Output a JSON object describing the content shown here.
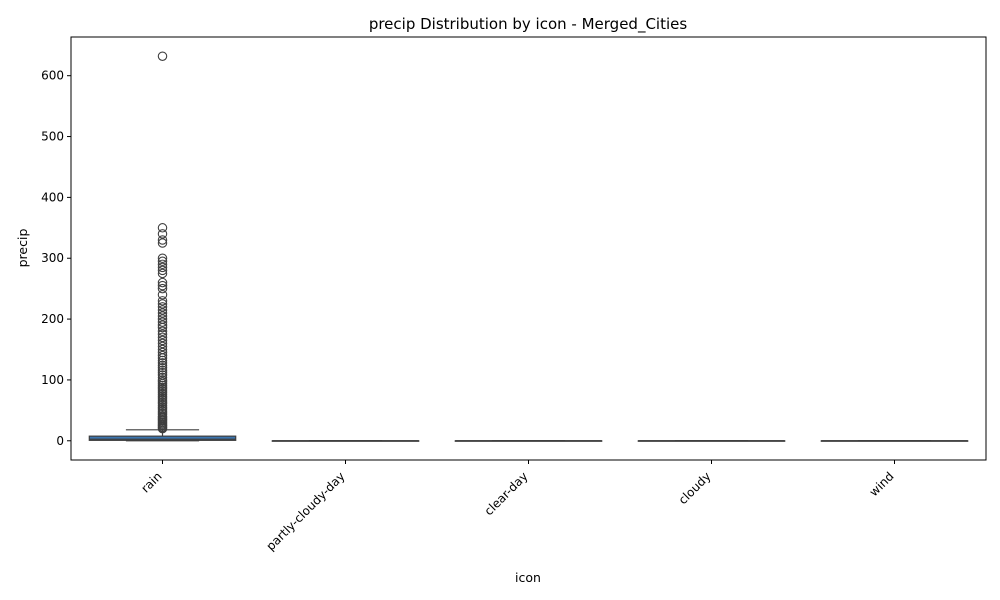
{
  "chart_data": {
    "type": "box",
    "title": "precip Distribution by icon - Merged_Cities",
    "xlabel": "icon",
    "ylabel": "precip",
    "ylim": [
      -31.6,
      663.6
    ],
    "yticks": [
      0,
      100,
      200,
      300,
      400,
      500,
      600
    ],
    "categories": [
      "rain",
      "partly-cloudy-day",
      "clear-day",
      "cloudy",
      "wind"
    ],
    "box_color": "#3b75af",
    "boxes": [
      {
        "category": "rain",
        "min": 0,
        "q1": 0.7,
        "median": 2.5,
        "q3": 7.6,
        "max": 18.0,
        "outliers": [
          20,
          22,
          24,
          26,
          28,
          30,
          32,
          34,
          36,
          38,
          40,
          43,
          46,
          49,
          52,
          55,
          58,
          61,
          64,
          67,
          70,
          73,
          76,
          79,
          82,
          85,
          88,
          91,
          94,
          97,
          100,
          104,
          108,
          112,
          116,
          120,
          124,
          128,
          132,
          136,
          140,
          145,
          150,
          155,
          160,
          165,
          170,
          175,
          180,
          186,
          190,
          195,
          200,
          205,
          210,
          215,
          220,
          225,
          230,
          240,
          250,
          255,
          260,
          275,
          280,
          285,
          290,
          295,
          300,
          325,
          330,
          340,
          350,
          632
        ]
      },
      {
        "category": "partly-cloudy-day",
        "min": 0,
        "q1": 0,
        "median": 0,
        "q3": 0,
        "max": 0,
        "outliers": []
      },
      {
        "category": "clear-day",
        "min": 0,
        "q1": 0,
        "median": 0,
        "q3": 0,
        "max": 0,
        "outliers": []
      },
      {
        "category": "cloudy",
        "min": 0,
        "q1": 0,
        "median": 0,
        "q3": 0,
        "max": 0,
        "outliers": []
      },
      {
        "category": "wind",
        "min": 0,
        "q1": 0,
        "median": 0,
        "q3": 0,
        "max": 0,
        "outliers": []
      }
    ]
  }
}
